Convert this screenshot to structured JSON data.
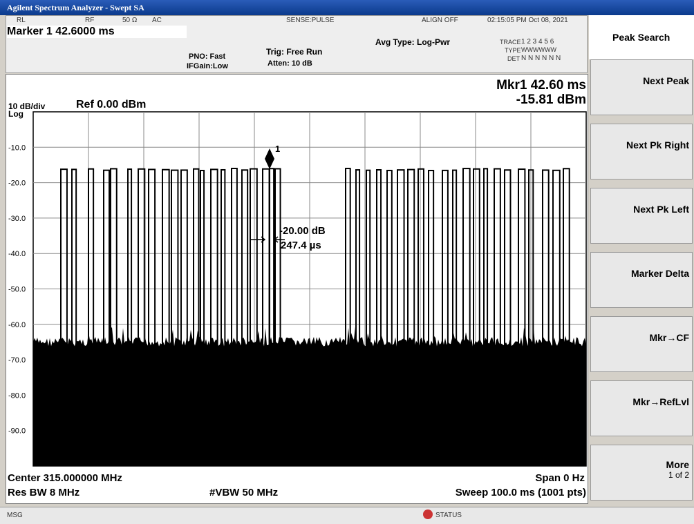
{
  "window": {
    "title": "Agilent Spectrum Analyzer - Swept SA"
  },
  "status_row": {
    "rl": "RL",
    "rf": "RF",
    "impedance": "50 Ω",
    "coupling": "AC",
    "sense": "SENSE:PULSE",
    "align": "ALIGN OFF",
    "datetime": "02:15:05 PM Oct 08, 2021"
  },
  "marker_bar": {
    "marker": "Marker 1 42.6000 ms",
    "pno": "PNO: Fast",
    "ifgain": "IFGain:Low",
    "trig": "Trig: Free Run",
    "atten": "Atten: 10 dB",
    "avg_type": "Avg Type: Log-Pwr",
    "trace_label": "TRACE",
    "trace_nums": "1 2 3 4 5 6",
    "type_label": "TYPE",
    "type_vals": "WWWWWW",
    "det_label": "DET",
    "det_vals": "N N N N N N"
  },
  "plot": {
    "scale": "10 dB/div",
    "log": "Log",
    "ref": "Ref 0.00 dBm",
    "mkr_time": "Mkr1 42.60 ms",
    "mkr_level": "-15.81 dBm",
    "marker_num": "1",
    "y_labels": [
      "-10.0",
      "-20.0",
      "-30.0",
      "-40.0",
      "-50.0",
      "-60.0",
      "-70.0",
      "-80.0",
      "-90.0"
    ],
    "annotation_db": "-20.00 dB",
    "annotation_width": "247.4 µs"
  },
  "footer": {
    "center": "Center 315.000000 MHz",
    "span": "Span 0 Hz",
    "rbw": "Res BW 8 MHz",
    "vbw": "#VBW 50 MHz",
    "sweep": "Sweep  100.0 ms (1001 pts)"
  },
  "softkeys": {
    "header": "Peak Search",
    "keys": [
      "Next Peak",
      "Next Pk Right",
      "Next Pk Left",
      "Marker Delta",
      "Mkr→CF",
      "Mkr→RefLvl",
      "More"
    ],
    "more_sub": "1 of 2"
  },
  "status_bar": {
    "msg": "MSG",
    "status": "STATUS"
  }
}
